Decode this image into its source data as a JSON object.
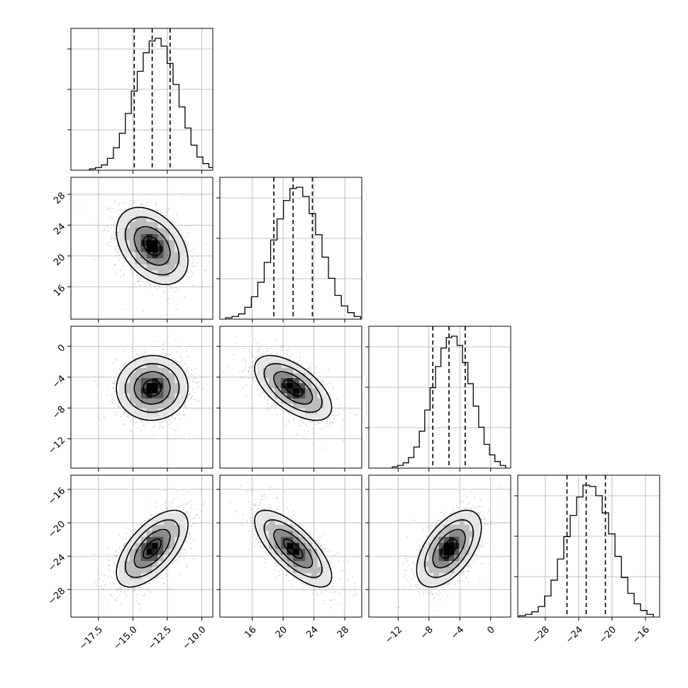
{
  "colors": {
    "background": "#ffffff",
    "axes": "#000000",
    "grid": "#b0b0b0",
    "histogram": "#000000",
    "quantile_line": "#000000",
    "scatter": "#9a9a9a",
    "density_ramp": [
      "#ffffff",
      "#e6e6e6",
      "#bdbdbd",
      "#8a8a8a",
      "#555555",
      "#222222",
      "#000000"
    ]
  },
  "chart_data": {
    "type": "corner",
    "grid": true,
    "ndim": 4,
    "parameters": [
      {
        "range": [
          -19.5,
          -9.2
        ],
        "ticks": [
          -17.5,
          -15.0,
          -12.5,
          -10.0
        ],
        "tick_labels": [
          "−17.5",
          "−15.0",
          "−12.5",
          "−10.0"
        ],
        "quantiles": [
          -14.9,
          -13.6,
          -12.3
        ],
        "mean": -13.6,
        "sigma": 1.3
      },
      {
        "range": [
          11.8,
          30.2
        ],
        "ticks": [
          16,
          20,
          24,
          28
        ],
        "tick_labels": [
          "16",
          "20",
          "24",
          "28"
        ],
        "quantiles": [
          18.8,
          21.3,
          23.8
        ],
        "mean": 21.3,
        "sigma": 2.5
      },
      {
        "range": [
          -15.8,
          2.6
        ],
        "ticks": [
          -12,
          -8,
          -4,
          0
        ],
        "tick_labels": [
          "−12",
          "−8",
          "−4",
          "0"
        ],
        "quantiles": [
          -7.5,
          -5.4,
          -3.3
        ],
        "mean": -5.4,
        "sigma": 2.1
      },
      {
        "range": [
          -31.3,
          -14.3
        ],
        "ticks": [
          -28,
          -24,
          -20,
          -16
        ],
        "tick_labels": [
          "−28",
          "−24",
          "−20",
          "−16"
        ],
        "quantiles": [
          -25.4,
          -23.1,
          -20.8
        ],
        "mean": -23.1,
        "sigma": 2.3
      }
    ],
    "histograms": [
      [
        1,
        2,
        4,
        9,
        17,
        28,
        43,
        60,
        75,
        89,
        98,
        100,
        94,
        81,
        65,
        48,
        32,
        19,
        10,
        5,
        2
      ],
      [
        1,
        2,
        4,
        9,
        17,
        28,
        43,
        60,
        76,
        90,
        99,
        100,
        93,
        80,
        64,
        47,
        31,
        18,
        10,
        5,
        2
      ],
      [
        1,
        2,
        4,
        8,
        16,
        28,
        44,
        61,
        77,
        91,
        99,
        100,
        93,
        80,
        64,
        47,
        31,
        18,
        10,
        5,
        2
      ],
      [
        1,
        2,
        4,
        8,
        16,
        28,
        44,
        61,
        77,
        91,
        100,
        99,
        92,
        79,
        63,
        46,
        30,
        18,
        10,
        5,
        2
      ]
    ],
    "correlations": {
      "1-0": -0.38,
      "2-0": 0.02,
      "2-1": -0.6,
      "3-0": 0.62,
      "3-1": -0.72,
      "3-2": 0.55
    },
    "contour_levels_sigma": [
      0.5,
      1.0,
      1.5,
      2.0
    ]
  }
}
